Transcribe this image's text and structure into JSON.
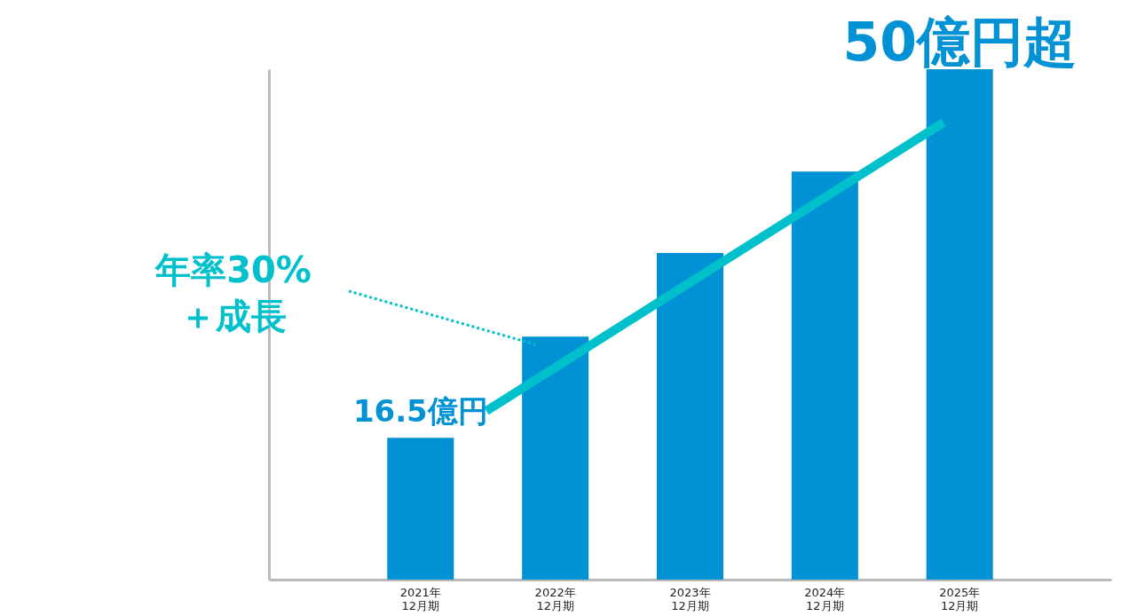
{
  "chart_data": {
    "type": "bar",
    "categories": [
      "2021年\n12月期",
      "2022年\n12月期",
      "2023年\n12月期",
      "2024年\n12月期",
      "2025年\n12月期"
    ],
    "values": [
      16.5,
      25.7,
      33.3,
      40.7,
      50
    ],
    "ylim": [
      3.6,
      50
    ],
    "color": "#0092d4",
    "value_labels": [
      "16.5億円",
      null,
      null,
      null,
      "50億円超"
    ],
    "annotations": [
      "年率30%\n＋成長"
    ]
  }
}
